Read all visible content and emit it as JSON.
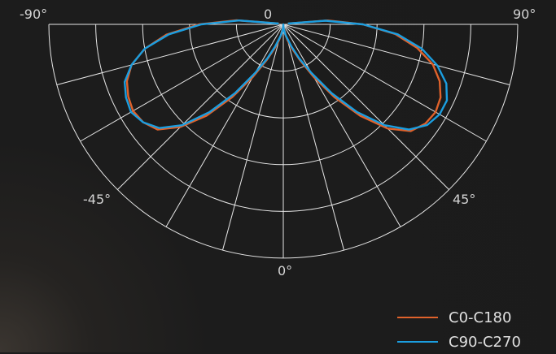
{
  "chart_data": {
    "type": "polar",
    "angular_tick_labels": [
      "-90°",
      "0",
      "90°",
      "-45°",
      "45°",
      "0°"
    ],
    "radial_rings": 5,
    "grid": true,
    "legend_placement": "bottom-right",
    "series": [
      {
        "name": "C0-C180",
        "color": "#e0622b",
        "angles": [
          0,
          5,
          10,
          15,
          20,
          25,
          30,
          35,
          40,
          45,
          50,
          55,
          60,
          65,
          70,
          75,
          80,
          85,
          90,
          95,
          100
        ],
        "left": [
          0.0,
          0.02,
          0.04,
          0.07,
          0.11,
          0.17,
          0.26,
          0.38,
          0.51,
          0.62,
          0.7,
          0.73,
          0.74,
          0.73,
          0.71,
          0.67,
          0.6,
          0.5,
          0.36,
          0.2,
          0.02
        ],
        "right": [
          0.0,
          0.02,
          0.04,
          0.07,
          0.11,
          0.17,
          0.26,
          0.38,
          0.51,
          0.63,
          0.71,
          0.74,
          0.75,
          0.74,
          0.71,
          0.66,
          0.58,
          0.48,
          0.34,
          0.19,
          0.02
        ]
      },
      {
        "name": "C90-C270",
        "color": "#1b9ee0",
        "angles": [
          0,
          5,
          10,
          15,
          20,
          25,
          30,
          35,
          40,
          45,
          50,
          55,
          60,
          65,
          70,
          75,
          80,
          85,
          90,
          95,
          100
        ],
        "left": [
          0.0,
          0.02,
          0.04,
          0.06,
          0.1,
          0.16,
          0.24,
          0.36,
          0.49,
          0.61,
          0.69,
          0.73,
          0.75,
          0.74,
          0.72,
          0.67,
          0.6,
          0.49,
          0.35,
          0.19,
          0.02
        ],
        "right": [
          0.0,
          0.02,
          0.04,
          0.06,
          0.1,
          0.16,
          0.24,
          0.36,
          0.49,
          0.61,
          0.7,
          0.75,
          0.77,
          0.77,
          0.74,
          0.68,
          0.6,
          0.49,
          0.34,
          0.18,
          0.02
        ]
      }
    ]
  }
}
